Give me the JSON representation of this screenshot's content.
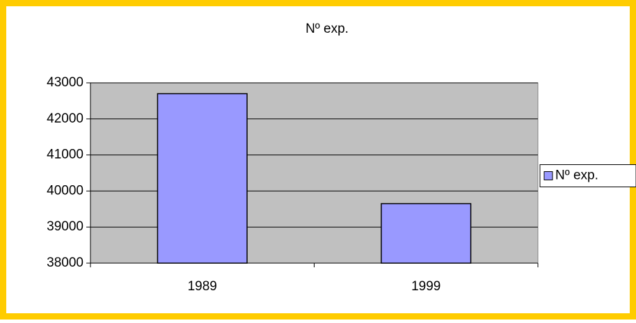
{
  "chart_data": {
    "type": "bar",
    "title": "Nº exp.",
    "categories": [
      "1989",
      "1999"
    ],
    "series": [
      {
        "name": "Nº exp.",
        "color": "#9999ff",
        "values": [
          42700,
          39650
        ]
      }
    ],
    "ylim": [
      38000,
      43000
    ],
    "yticks": [
      38000,
      39000,
      40000,
      41000,
      42000,
      43000
    ],
    "grid": true,
    "legend": "right"
  }
}
